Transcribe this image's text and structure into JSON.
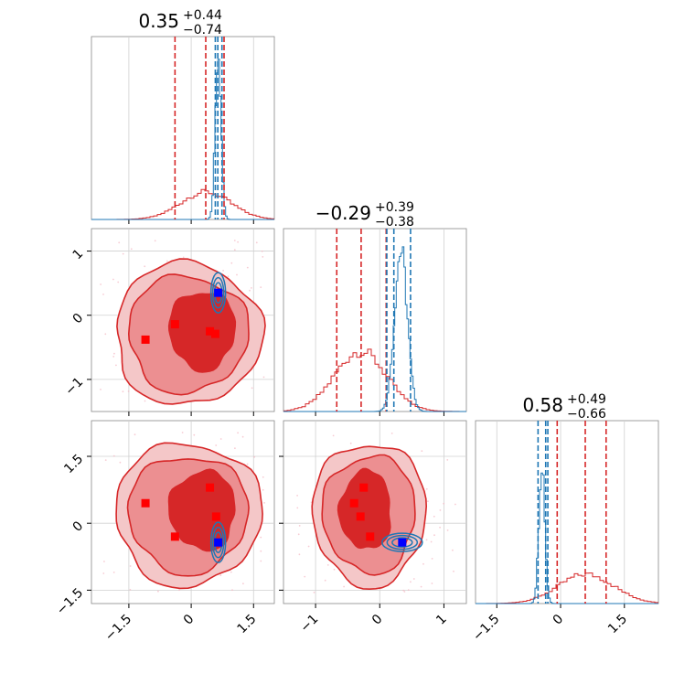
{
  "chart_data": {
    "type": "corner",
    "colors": {
      "red": "#d62728",
      "blue": "#1f77b4",
      "red_marker": "#ff0000",
      "blue_marker": "#0000ff"
    },
    "diagonals": [
      {
        "param": 0,
        "title": {
          "main": "0.35",
          "plus": "+0.44",
          "minus": "−0.74"
        },
        "range": [
          -2.4,
          2.0
        ],
        "xticks": [
          -1.5,
          0.0,
          1.5
        ],
        "red_lines": [
          -0.39,
          0.35,
          0.79
        ],
        "blue_lines": [
          0.58,
          0.64,
          0.74
        ],
        "red_hist": {
          "mean": 0.35,
          "sd": 0.6,
          "peak": 0.15
        },
        "blue_hist": {
          "mean": 0.65,
          "sd": 0.07,
          "peak": 0.93
        }
      },
      {
        "param": 1,
        "title": {
          "main": "−0.29",
          "plus": "+0.39",
          "minus": "−0.38"
        },
        "range": [
          -1.5,
          1.35
        ],
        "xticks": [
          -1,
          0,
          1
        ],
        "red_lines": [
          -0.67,
          -0.29,
          0.1
        ],
        "blue_lines": [
          0.11,
          0.22,
          0.48
        ],
        "red_hist": {
          "mean": -0.3,
          "sd": 0.4,
          "peak": 0.33
        },
        "blue_hist": {
          "mean": 0.33,
          "sd": 0.1,
          "peak": 0.88
        }
      },
      {
        "param": 2,
        "title": {
          "main": "0.58",
          "plus": "+0.49",
          "minus": "−0.66"
        },
        "range": [
          -2.0,
          2.3
        ],
        "xticks": [
          -1.5,
          0.0,
          1.5
        ],
        "red_lines": [
          -0.08,
          0.58,
          1.07
        ],
        "blue_lines": [
          -0.53,
          -0.35,
          -0.3
        ],
        "red_hist": {
          "mean": 0.6,
          "sd": 0.65,
          "peak": 0.16
        },
        "blue_hist": {
          "mean": -0.44,
          "sd": 0.07,
          "peak": 0.78
        }
      }
    ],
    "offdiagonals": [
      {
        "row": 1,
        "col": 0,
        "yticks": [
          1,
          0,
          -1
        ],
        "red_markers": [
          [
            -1.1,
            -0.38
          ],
          [
            -0.39,
            -0.14
          ],
          [
            0.45,
            -0.25
          ],
          [
            0.58,
            -0.29
          ]
        ],
        "blue_marker": [
          0.65,
          0.35
        ]
      },
      {
        "row": 2,
        "col": 0,
        "yticks": [
          1.5,
          0.0,
          -1.5
        ],
        "red_markers": [
          [
            -1.1,
            0.45
          ],
          [
            0.45,
            0.8
          ],
          [
            0.6,
            0.15
          ],
          [
            -0.39,
            -0.3
          ]
        ],
        "blue_marker": [
          0.65,
          -0.43
        ]
      },
      {
        "row": 2,
        "col": 1,
        "red_markers": [
          [
            -0.25,
            0.8
          ],
          [
            -0.4,
            0.45
          ],
          [
            -0.3,
            0.15
          ],
          [
            -0.15,
            -0.3
          ]
        ],
        "blue_marker": [
          0.35,
          -0.43
        ]
      }
    ]
  }
}
